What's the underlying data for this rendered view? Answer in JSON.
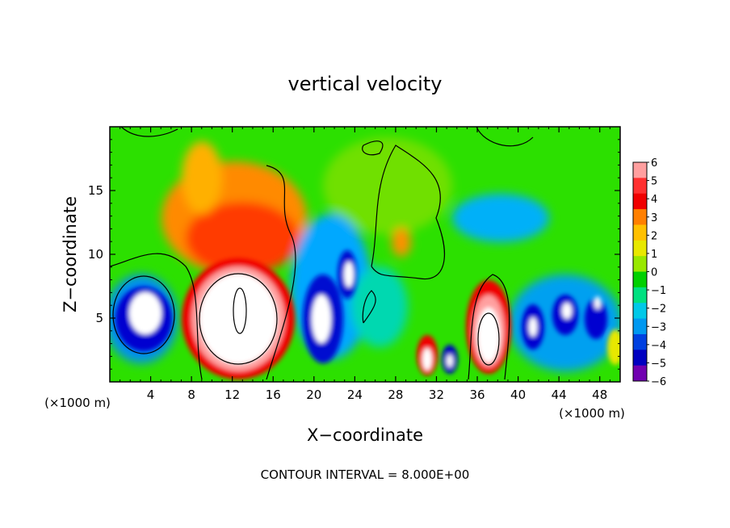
{
  "chart_data": {
    "type": "heatmap",
    "title": "vertical velocity",
    "xlabel": "X−coordinate",
    "ylabel": "Z−coordinate",
    "x_unit_label_left": "(×1000 m)",
    "x_unit_label_right": "(×1000 m)",
    "footer": "CONTOUR INTERVAL = 8.000E+00",
    "xlim": [
      0,
      50
    ],
    "ylim": [
      0,
      20
    ],
    "x_ticks": [
      4,
      8,
      12,
      16,
      20,
      24,
      28,
      32,
      36,
      40,
      44,
      48
    ],
    "x_tick_labels": [
      "4",
      "8",
      "12",
      "16",
      "20",
      "24",
      "28",
      "32",
      "36",
      "40",
      "44",
      "48"
    ],
    "y_ticks": [
      5,
      10,
      15
    ],
    "y_tick_labels": [
      "5",
      "10",
      "15"
    ],
    "colorbar": {
      "levels": [
        6,
        5,
        4,
        3,
        2,
        1,
        0,
        -1,
        -2,
        -3,
        -4,
        -5,
        -6
      ],
      "labels": [
        "6",
        "5",
        "4",
        "3",
        "2",
        "1",
        "0",
        "−1",
        "−2",
        "−3",
        "−4",
        "−5",
        "−6"
      ],
      "colors": [
        "#ff9f9f",
        "#ff3030",
        "#f00000",
        "#ff7f00",
        "#ffc000",
        "#e8e800",
        "#98e800",
        "#00d000",
        "#00e080",
        "#00c8e8",
        "#0098f0",
        "#0040e0",
        "#0000c0",
        "#7000b0"
      ]
    },
    "cells": [
      {
        "x": [
          2,
          7
        ],
        "z": [
          2,
          7
        ],
        "value": -6
      },
      {
        "x": [
          9,
          17
        ],
        "z": [
          0.5,
          8
        ],
        "value": 6
      },
      {
        "x": [
          8,
          19
        ],
        "z": [
          8,
          19
        ],
        "value": 3
      },
      {
        "x": [
          19,
          24
        ],
        "z": [
          1,
          12
        ],
        "value": -5
      },
      {
        "x": [
          24,
          27
        ],
        "z": [
          2,
          7
        ],
        "value": -3
      },
      {
        "x": [
          28,
          30
        ],
        "z": [
          9,
          12
        ],
        "value": 2
      },
      {
        "x": [
          30,
          32
        ],
        "z": [
          0.5,
          4
        ],
        "value": 5
      },
      {
        "x": [
          33,
          34
        ],
        "z": [
          0.5,
          3
        ],
        "value": -5
      },
      {
        "x": [
          35,
          39
        ],
        "z": [
          1,
          8
        ],
        "value": 6
      },
      {
        "x": [
          40,
          48
        ],
        "z": [
          2,
          8
        ],
        "value": -5
      },
      {
        "x": [
          36,
          44
        ],
        "z": [
          10,
          15
        ],
        "value": -2
      },
      {
        "x": [
          48,
          50
        ],
        "z": [
          1,
          4
        ],
        "value": 1
      }
    ]
  }
}
